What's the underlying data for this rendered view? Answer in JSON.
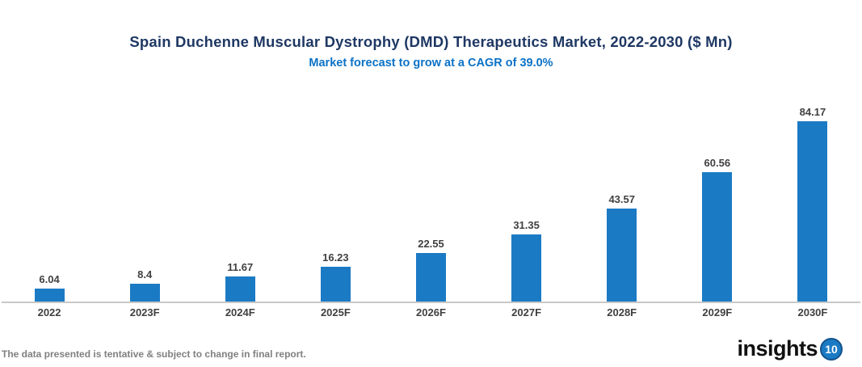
{
  "chart_data": {
    "type": "bar",
    "title": "Spain Duchenne Muscular Dystrophy (DMD) Therapeutics Market, 2022-2030 ($ Mn)",
    "subtitle": "Market forecast to grow at a CAGR of 39.0%",
    "categories": [
      "2022",
      "2023F",
      "2024F",
      "2025F",
      "2026F",
      "2027F",
      "2028F",
      "2029F",
      "2030F"
    ],
    "values": [
      6.04,
      8.4,
      11.67,
      16.23,
      22.55,
      31.35,
      43.57,
      60.56,
      84.17
    ],
    "value_labels": [
      "6.04",
      "8.4",
      "11.67",
      "16.23",
      "22.55",
      "31.35",
      "43.57",
      "60.56",
      "84.17"
    ],
    "xlabel": "",
    "ylabel": "",
    "ylim": [
      0,
      90
    ],
    "grid": false,
    "legend": "none",
    "bar_color": "#1B7AC4"
  },
  "colors": {
    "background": "#FFFFFF",
    "title": "#1F3864",
    "subtitle": "#0B72C6",
    "data_label": "#404040",
    "axis_line": "#C8C8C8",
    "bar": "#1B7AC4",
    "footer": "#808080",
    "logo_text": "#111111",
    "logo_badge_bg": "#1B7AC4",
    "logo_badge_ring": "#14538C",
    "logo_badge_text": "#FFFFFF"
  },
  "footer": {
    "disclaimer": "The data presented is tentative & subject to change in final report."
  },
  "branding": {
    "logo_text": "insights",
    "logo_badge": "10"
  }
}
